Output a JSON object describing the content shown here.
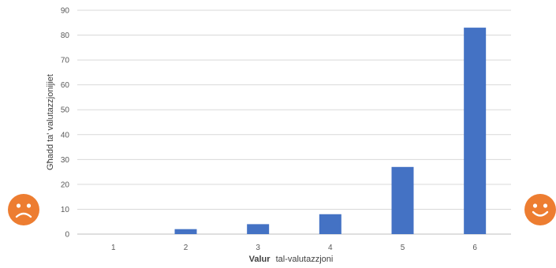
{
  "chart_data": {
    "type": "bar",
    "title": "",
    "categories": [
      "1",
      "2",
      "3",
      "4",
      "5",
      "6"
    ],
    "values": [
      0,
      2,
      4,
      8,
      27,
      83
    ],
    "xlabel_bold": "Valur",
    "xlabel_rest": "tal-valutazzjoni",
    "ylabel": "Għadd ta' valutazzjonijiet",
    "ylim": [
      0,
      90
    ],
    "yticks": [
      "0",
      "10",
      "20",
      "30",
      "40",
      "50",
      "60",
      "70",
      "80",
      "90"
    ],
    "grid": true,
    "bar_color": "#4472c4"
  },
  "faces": {
    "left": {
      "icon": "sad-face-icon",
      "color": "#ed7d31"
    },
    "right": {
      "icon": "happy-face-icon",
      "color": "#ed7d31"
    }
  }
}
